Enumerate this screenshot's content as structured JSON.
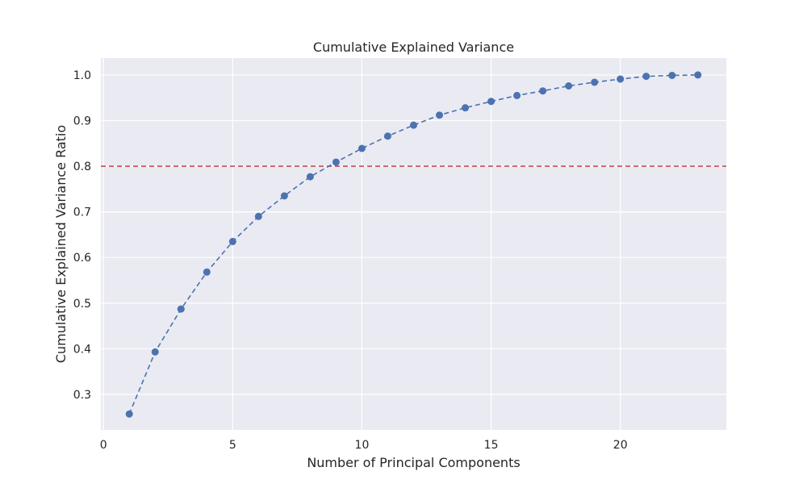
{
  "chart_data": {
    "type": "line",
    "title": "Cumulative Explained Variance",
    "xlabel": "Number of Principal Components",
    "ylabel": "Cumulative Explained Variance Ratio",
    "xlim": [
      -0.1,
      24.1
    ],
    "ylim": [
      0.222,
      1.037
    ],
    "xticks": [
      0,
      5,
      10,
      15,
      20
    ],
    "yticks": [
      0.3,
      0.4,
      0.5,
      0.6,
      0.7,
      0.8,
      0.9,
      1.0
    ],
    "ytick_labels": [
      "0.3",
      "0.4",
      "0.5",
      "0.6",
      "0.7",
      "0.8",
      "0.9",
      "1.0"
    ],
    "grid": true,
    "series": [
      {
        "x": [
          1,
          2,
          3,
          4,
          5,
          6,
          7,
          8,
          9,
          10,
          11,
          12,
          13,
          14,
          15,
          16,
          17,
          18,
          19,
          20,
          21,
          22,
          23
        ],
        "values": [
          0.257,
          0.393,
          0.487,
          0.568,
          0.635,
          0.69,
          0.735,
          0.777,
          0.809,
          0.839,
          0.866,
          0.89,
          0.912,
          0.928,
          0.942,
          0.955,
          0.965,
          0.976,
          0.984,
          0.991,
          0.997,
          0.999,
          1.0
        ],
        "color": "#4c72b0",
        "line_style": "dashed",
        "marker": "circle"
      }
    ],
    "reference_line": {
      "orientation": "horizontal",
      "y": 0.8,
      "color": "#c44e52",
      "line_style": "dashed"
    },
    "background_color": "#eaeaf2"
  }
}
